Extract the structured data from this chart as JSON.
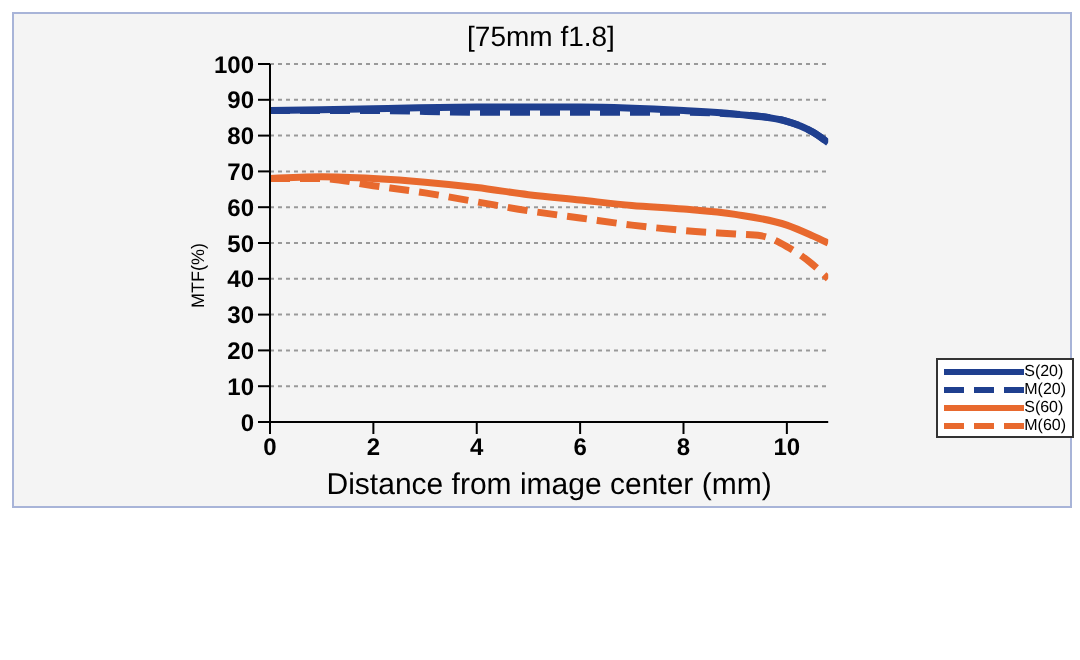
{
  "chart_data": {
    "type": "line",
    "title": "[75mm f1.8]",
    "xlabel": "Distance from image center (mm)",
    "ylabel": "MTF(%)",
    "xlim": [
      0,
      10.8
    ],
    "xticks": [
      0,
      2,
      4,
      6,
      8,
      10
    ],
    "ylim": [
      0,
      100
    ],
    "yticks": [
      0,
      10,
      20,
      30,
      40,
      50,
      60,
      70,
      80,
      90,
      100
    ],
    "grid": "y",
    "legend": "bottom right",
    "marker": "none",
    "series": [
      {
        "name": "S(20)",
        "color": "#1f3f8f",
        "line_style": "solid",
        "x": [
          0,
          2,
          4,
          6,
          8,
          9,
          10,
          10.5,
          10.8
        ],
        "values": [
          87,
          87.5,
          88,
          88,
          87,
          86,
          84,
          81,
          78
        ]
      },
      {
        "name": "M(20)",
        "color": "#1f3f8f",
        "line_style": "dashed",
        "x": [
          0,
          2,
          4,
          6,
          8,
          9,
          10,
          10.5,
          10.8
        ],
        "values": [
          87,
          87,
          86.5,
          86.5,
          86.5,
          86,
          84,
          81,
          78
        ]
      },
      {
        "name": "S(60)",
        "color": "#e8692e",
        "line_style": "solid",
        "x": [
          0,
          1,
          2,
          3,
          4,
          5,
          6,
          7,
          8,
          9,
          10,
          10.5,
          10.8
        ],
        "values": [
          68,
          68.5,
          68,
          67,
          65.5,
          63.5,
          62,
          60.5,
          59.5,
          58,
          55,
          52,
          50
        ]
      },
      {
        "name": "M(60)",
        "color": "#e8692e",
        "line_style": "dashed",
        "x": [
          0,
          1,
          2,
          3,
          4,
          5,
          6,
          7,
          8,
          9,
          9.5,
          10,
          10.5,
          10.8
        ],
        "values": [
          68,
          68,
          66,
          64,
          61.5,
          59,
          57,
          55,
          53.5,
          52.5,
          52,
          49,
          44,
          40
        ]
      }
    ]
  }
}
